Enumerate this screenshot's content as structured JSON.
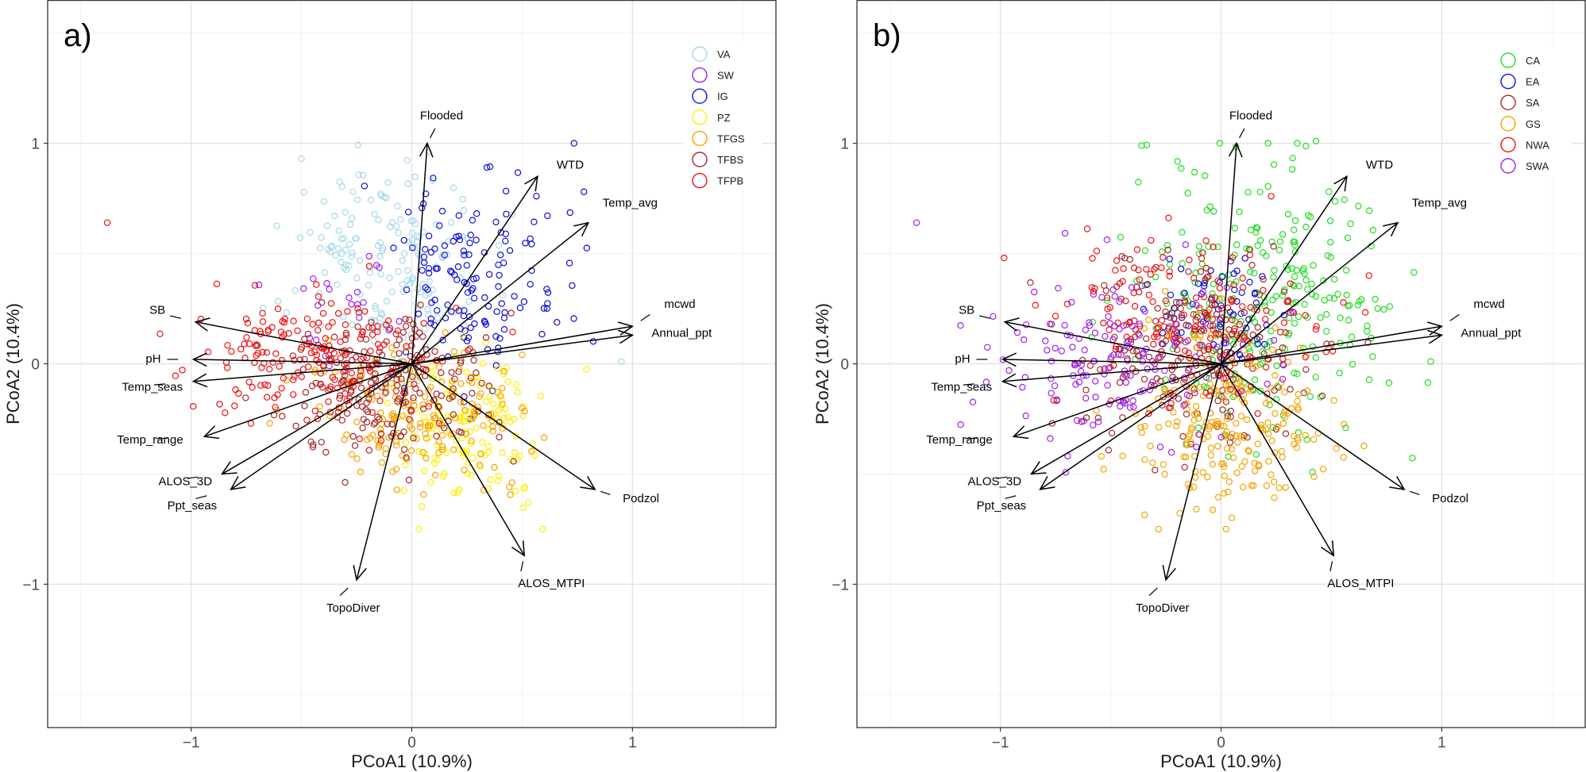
{
  "chart_data": [
    {
      "type": "scatter",
      "panel_label": "a)",
      "xlabel": "PCoA1 (10.9%)",
      "ylabel": "PCoA2 (10.4%)",
      "xlim": [
        -1.65,
        1.65
      ],
      "ylim": [
        -1.65,
        1.65
      ],
      "xticks": [
        -1,
        0,
        1
      ],
      "yticks": [
        -1,
        0,
        1
      ],
      "xtick_labels": [
        "−1",
        "0",
        "1"
      ],
      "ytick_labels": [
        "−1",
        "0",
        "1"
      ],
      "grid": true,
      "legend_position": "top-right",
      "series": [
        {
          "name": "VA",
          "color": "#a6d8ea",
          "n": 170,
          "center": [
            -0.1,
            0.45
          ],
          "spread": [
            0.22,
            0.22
          ]
        },
        {
          "name": "SW",
          "color": "#a020f0",
          "n": 22,
          "center": [
            -0.3,
            0.25
          ],
          "spread": [
            0.2,
            0.2
          ]
        },
        {
          "name": "IG",
          "color": "#1010d0",
          "n": 140,
          "center": [
            0.3,
            0.38
          ],
          "spread": [
            0.18,
            0.22
          ]
        },
        {
          "name": "PZ",
          "color": "#ffee00",
          "n": 140,
          "center": [
            0.27,
            -0.32
          ],
          "spread": [
            0.16,
            0.16
          ]
        },
        {
          "name": "TFGS",
          "color": "#f5a300",
          "n": 170,
          "center": [
            0.02,
            -0.25
          ],
          "spread": [
            0.26,
            0.16
          ]
        },
        {
          "name": "TFBS",
          "color": "#a52a2a",
          "n": 200,
          "center": [
            -0.12,
            -0.1
          ],
          "spread": [
            0.24,
            0.16
          ]
        },
        {
          "name": "TFPB",
          "color": "#ee1111",
          "n": 190,
          "center": [
            -0.4,
            0.02
          ],
          "spread": [
            0.3,
            0.14
          ]
        }
      ],
      "extreme_points": [
        {
          "series": "TFPB",
          "x": -1.38,
          "y": 0.64
        },
        {
          "series": "VA",
          "x": 0.95,
          "y": 0.01
        },
        {
          "series": "VA",
          "x": -0.5,
          "y": 0.93
        },
        {
          "series": "IG",
          "x": 0.78,
          "y": 0.78
        }
      ],
      "vectors": [
        {
          "name": "Flooded",
          "x": 0.07,
          "y": 1.0
        },
        {
          "name": "WTD",
          "x": 0.57,
          "y": 0.85
        },
        {
          "name": "Temp_avg",
          "x": 0.8,
          "y": 0.64
        },
        {
          "name": "mcwd",
          "x": 1.0,
          "y": 0.17
        },
        {
          "name": "Annual_ppt",
          "x": 1.0,
          "y": 0.13
        },
        {
          "name": "Podzol",
          "x": 0.83,
          "y": -0.57
        },
        {
          "name": "ALOS_MTPI",
          "x": 0.51,
          "y": -0.87
        },
        {
          "name": "TopoDiver",
          "x": -0.25,
          "y": -0.98
        },
        {
          "name": "Ppt_seas",
          "x": -0.82,
          "y": -0.57
        },
        {
          "name": "ALOS_3D",
          "x": -0.86,
          "y": -0.5
        },
        {
          "name": "Temp_range",
          "x": -0.94,
          "y": -0.33
        },
        {
          "name": "Temp_seas",
          "x": -0.99,
          "y": -0.08
        },
        {
          "name": "pH",
          "x": -0.99,
          "y": 0.02
        },
        {
          "name": "SB",
          "x": -0.98,
          "y": 0.19
        }
      ]
    },
    {
      "type": "scatter",
      "panel_label": "b)",
      "xlabel": "PCoA1 (10.9%)",
      "ylabel": "PCoA2 (10.4%)",
      "xlim": [
        -1.65,
        1.65
      ],
      "ylim": [
        -1.65,
        1.65
      ],
      "xticks": [
        -1,
        0,
        1
      ],
      "yticks": [
        -1,
        0,
        1
      ],
      "xtick_labels": [
        "−1",
        "0",
        "1"
      ],
      "ytick_labels": [
        "−1",
        "0",
        "1"
      ],
      "grid": true,
      "legend_position": "top-right",
      "series": [
        {
          "name": "CA",
          "color": "#22dd22",
          "n": 260,
          "center": [
            0.2,
            0.28
          ],
          "spread": [
            0.3,
            0.3
          ]
        },
        {
          "name": "EA",
          "color": "#1010d0",
          "n": 70,
          "center": [
            -0.05,
            0.22
          ],
          "spread": [
            0.15,
            0.12
          ]
        },
        {
          "name": "SA",
          "color": "#a52a2a",
          "n": 200,
          "center": [
            -0.15,
            0.02
          ],
          "spread": [
            0.26,
            0.2
          ]
        },
        {
          "name": "GS",
          "color": "#f5a300",
          "n": 220,
          "center": [
            0.03,
            -0.26
          ],
          "spread": [
            0.22,
            0.2
          ]
        },
        {
          "name": "NWA",
          "color": "#ee1111",
          "n": 170,
          "center": [
            -0.12,
            0.18
          ],
          "spread": [
            0.3,
            0.2
          ]
        },
        {
          "name": "SWA",
          "color": "#a020f0",
          "n": 150,
          "center": [
            -0.48,
            0.05
          ],
          "spread": [
            0.3,
            0.2
          ]
        }
      ],
      "extreme_points": [
        {
          "series": "SWA",
          "x": -1.38,
          "y": 0.64
        },
        {
          "series": "CA",
          "x": 0.95,
          "y": 0.01
        },
        {
          "series": "CA",
          "x": -0.36,
          "y": 0.99
        },
        {
          "series": "CA",
          "x": 0.43,
          "y": 1.01
        }
      ],
      "vectors": [
        {
          "name": "Flooded",
          "x": 0.07,
          "y": 1.0
        },
        {
          "name": "WTD",
          "x": 0.57,
          "y": 0.85
        },
        {
          "name": "Temp_avg",
          "x": 0.8,
          "y": 0.64
        },
        {
          "name": "mcwd",
          "x": 1.0,
          "y": 0.17
        },
        {
          "name": "Annual_ppt",
          "x": 1.0,
          "y": 0.13
        },
        {
          "name": "Podzol",
          "x": 0.83,
          "y": -0.57
        },
        {
          "name": "ALOS_MTPI",
          "x": 0.51,
          "y": -0.87
        },
        {
          "name": "TopoDiver",
          "x": -0.25,
          "y": -0.98
        },
        {
          "name": "Ppt_seas",
          "x": -0.82,
          "y": -0.57
        },
        {
          "name": "ALOS_3D",
          "x": -0.86,
          "y": -0.5
        },
        {
          "name": "Temp_range",
          "x": -0.94,
          "y": -0.33
        },
        {
          "name": "Temp_seas",
          "x": -0.99,
          "y": -0.08
        },
        {
          "name": "pH",
          "x": -0.99,
          "y": 0.02
        },
        {
          "name": "SB",
          "x": -0.98,
          "y": 0.19
        }
      ]
    }
  ]
}
